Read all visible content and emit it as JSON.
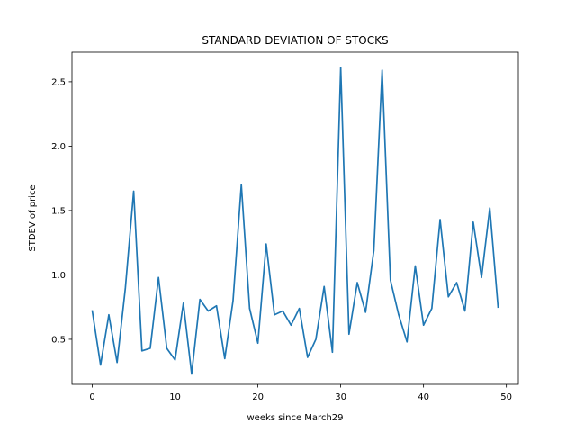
{
  "chart_data": {
    "type": "line",
    "title": "STANDARD DEVIATION OF STOCKS",
    "xlabel": "weeks since March29",
    "ylabel": "STDEV of price",
    "xlim": [
      -2.45,
      51.45
    ],
    "ylim": [
      0.15,
      2.73
    ],
    "xticks": [
      0,
      10,
      20,
      30,
      40,
      50
    ],
    "xtick_labels": [
      "0",
      "10",
      "20",
      "30",
      "40",
      "50"
    ],
    "yticks": [
      0.5,
      1.0,
      1.5,
      2.0,
      2.5
    ],
    "ytick_labels": [
      "0.5",
      "1.0",
      "1.5",
      "2.0",
      "2.5"
    ],
    "grid": false,
    "color": "#1f77b4",
    "series": [
      {
        "x": [
          0,
          1,
          2,
          3,
          4,
          5,
          6,
          7,
          8,
          9,
          10,
          11,
          12,
          13,
          14,
          15,
          16,
          17,
          18,
          19,
          20,
          21,
          22,
          23,
          24,
          25,
          26,
          27,
          28,
          29,
          30,
          31,
          32,
          33,
          34,
          35,
          36,
          37,
          38,
          39,
          40,
          41,
          42,
          43,
          44,
          45,
          46,
          47,
          48,
          49
        ],
        "values": [
          0.72,
          0.3,
          0.69,
          0.32,
          0.9,
          1.65,
          0.41,
          0.43,
          0.98,
          0.43,
          0.34,
          0.78,
          0.23,
          0.81,
          0.72,
          0.76,
          0.35,
          0.8,
          1.7,
          0.74,
          0.47,
          1.24,
          0.69,
          0.72,
          0.61,
          0.74,
          0.36,
          0.5,
          0.91,
          0.4,
          2.61,
          0.54,
          0.94,
          0.71,
          1.19,
          2.59,
          0.96,
          0.69,
          0.48,
          1.07,
          0.61,
          0.74,
          1.43,
          0.83,
          0.94,
          0.72,
          1.41,
          0.98,
          1.52,
          0.75
        ]
      }
    ]
  }
}
